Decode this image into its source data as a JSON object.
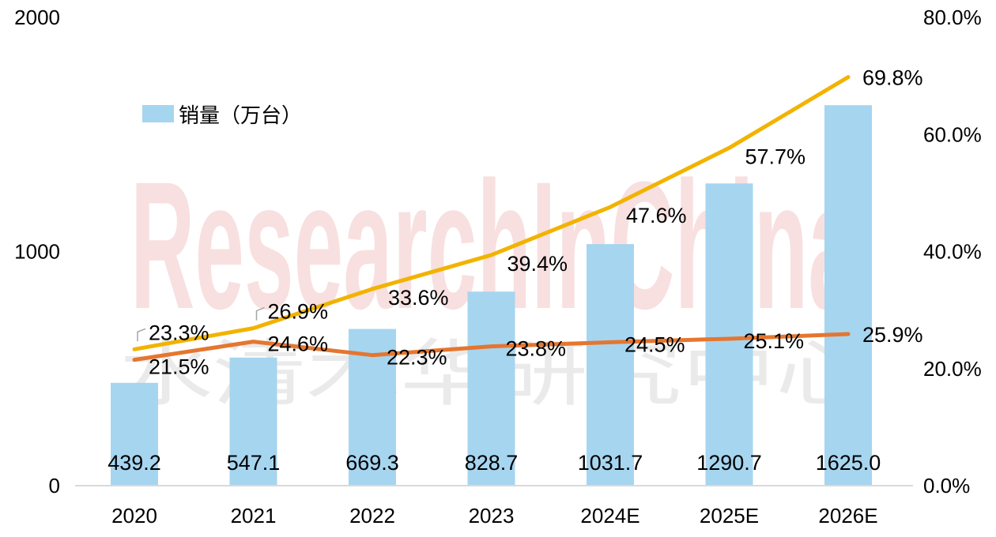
{
  "watermark": {
    "text_en": "ResearchInChina",
    "text_cn": "水清木华研究中心"
  },
  "legend": {
    "label": "销量（万台）"
  },
  "chart_data": {
    "type": "bar",
    "categories": [
      "2020",
      "2021",
      "2022",
      "2023",
      "2024E",
      "2025E",
      "2026E"
    ],
    "y_left": {
      "ylim": [
        0,
        2000
      ],
      "ticks": [
        "0",
        "1000",
        "2000"
      ]
    },
    "y_right": {
      "ylim": [
        0,
        80
      ],
      "ticks": [
        "0.0%",
        "20.0%",
        "40.0%",
        "60.0%",
        "80.0%"
      ]
    },
    "bars": {
      "name": "销量（万台）",
      "color": "#a6d5f0",
      "values": [
        439.2,
        547.1,
        669.3,
        828.7,
        1031.7,
        1290.7,
        1625.0
      ],
      "labels": [
        "439.2",
        "547.1",
        "669.3",
        "828.7",
        "1031.7",
        "1290.7",
        "1625.0"
      ]
    },
    "lines": [
      {
        "color": "#f2b300",
        "values": [
          23.3,
          26.9,
          33.6,
          39.4,
          47.6,
          57.7,
          69.8
        ],
        "labels": [
          "23.3%",
          "26.9%",
          "33.6%",
          "39.4%",
          "47.6%",
          "57.7%",
          "69.8%"
        ]
      },
      {
        "color": "#e5762f",
        "values": [
          21.5,
          24.6,
          22.3,
          23.8,
          24.5,
          25.1,
          25.9
        ],
        "labels": [
          "21.5%",
          "24.6%",
          "22.3%",
          "23.8%",
          "24.5%",
          "25.1%",
          "25.9%"
        ]
      }
    ]
  }
}
